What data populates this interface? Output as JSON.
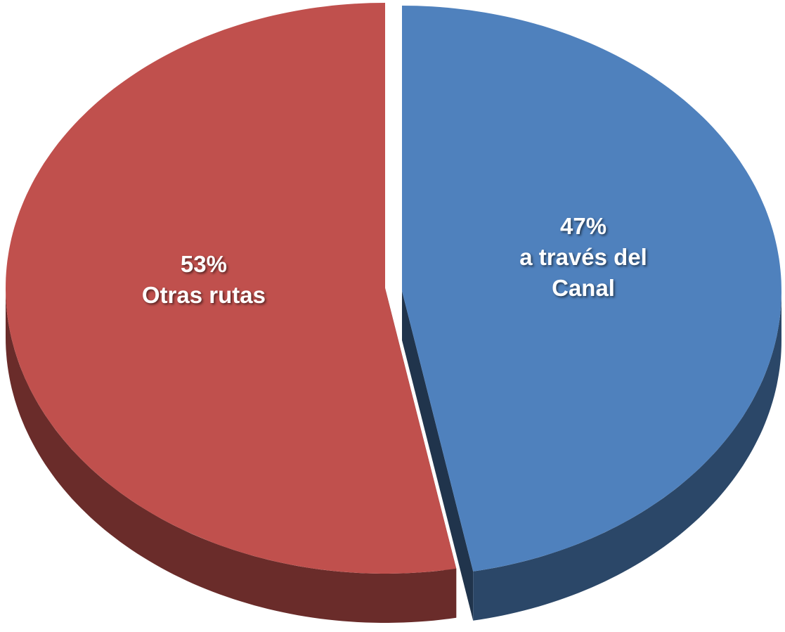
{
  "chart_data": {
    "type": "pie",
    "categories": [
      "a través del Canal",
      "Otras rutas"
    ],
    "values": [
      47,
      53
    ],
    "value_labels": [
      "47%",
      "53%"
    ],
    "colors": [
      "#4f81bd",
      "#c0504d"
    ]
  }
}
